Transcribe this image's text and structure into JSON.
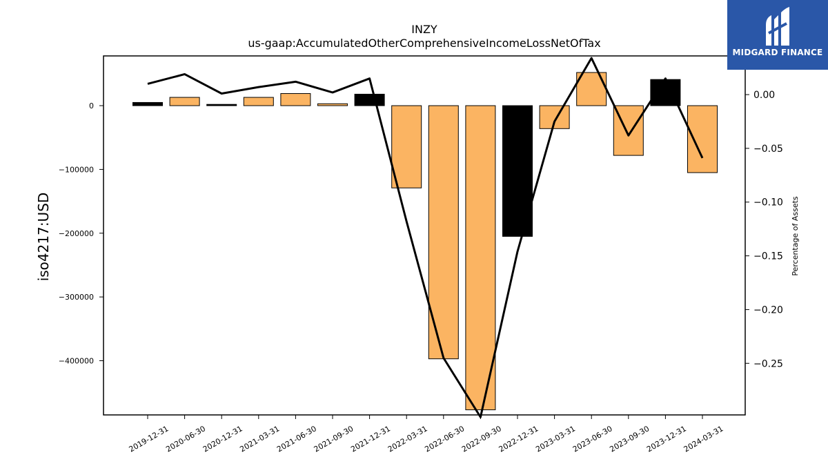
{
  "chart_data": {
    "type": "bar",
    "title": "INZY",
    "subtitle": "us-gaap:AccumulatedOtherComprehensiveIncomeLossNetOfTax",
    "ylabel": "iso4217:USD",
    "y2label": "Percentage of Assets",
    "categories": [
      "2019-12-31",
      "2020-06-30",
      "2020-12-31",
      "2021-03-31",
      "2021-06-30",
      "2021-09-30",
      "2021-12-31",
      "2022-03-31",
      "2022-06-30",
      "2022-09-30",
      "2022-12-31",
      "2023-03-31",
      "2023-06-30",
      "2023-09-30",
      "2023-12-31",
      "2024-03-31"
    ],
    "values": [
      5000,
      13000,
      2000,
      13000,
      19000,
      3000,
      18000,
      -129000,
      -397000,
      -477000,
      -205000,
      -36000,
      52000,
      -78000,
      41000,
      -105000
    ],
    "bar_colors": [
      "#000000",
      "#fbb462",
      "#000000",
      "#fbb462",
      "#fbb462",
      "#fbb462",
      "#000000",
      "#fbb462",
      "#fbb462",
      "#fbb462",
      "#000000",
      "#fbb462",
      "#fbb462",
      "#fbb462",
      "#000000",
      "#fbb462"
    ],
    "line_series": {
      "name": "Percentage of Assets",
      "values": [
        0.01,
        0.019,
        0.001,
        0.007,
        0.012,
        0.002,
        0.015,
        -0.118,
        -0.245,
        -0.3,
        -0.146,
        -0.025,
        0.034,
        -0.038,
        0.015,
        -0.059
      ]
    },
    "ylim": [
      -485000,
      78000
    ],
    "y2lim": [
      -0.298,
      0.036
    ],
    "yticks": [
      {
        "value": 0,
        "label": "0"
      },
      {
        "value": -100000,
        "label": "−100000"
      },
      {
        "value": -200000,
        "label": "−200000"
      },
      {
        "value": -300000,
        "label": "−300000"
      },
      {
        "value": -400000,
        "label": "−400000"
      }
    ],
    "y2ticks": [
      {
        "value": 0,
        "label": "0.00"
      },
      {
        "value": -0.05,
        "label": "−0.05"
      },
      {
        "value": -0.1,
        "label": "−0.10"
      },
      {
        "value": -0.15,
        "label": "−0.15"
      },
      {
        "value": -0.2,
        "label": "−0.20"
      },
      {
        "value": -0.25,
        "label": "−0.25"
      }
    ],
    "grid": false
  },
  "logo": {
    "text": "MIDGARD FINANCE",
    "background": "#2a57a8"
  }
}
